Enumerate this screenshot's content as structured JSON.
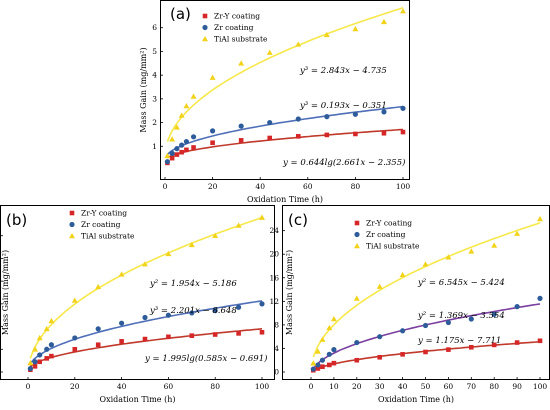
{
  "chart_data": [
    {
      "panel": "(a)",
      "type": "scatter",
      "xlabel": "Oxidation Time (h)",
      "ylabel": "Mass Gain (mg/mm²)",
      "xlim": [
        0,
        100
      ],
      "ylim": [
        0,
        7
      ],
      "xticks": [
        "0",
        "20",
        "40",
        "60",
        "80",
        "100"
      ],
      "yticks": [
        "1",
        "2",
        "3",
        "4",
        "5",
        "6"
      ],
      "legend_position": "top-left",
      "series": [
        {
          "name": "Zr-Y coating",
          "color": "#d62728",
          "marker": "square",
          "fit_color": "#c0392b",
          "x": [
            1,
            3,
            5,
            7,
            9,
            12,
            20,
            32,
            44,
            56,
            68,
            80,
            92,
            100
          ],
          "y": [
            0.3,
            0.5,
            0.65,
            0.75,
            0.85,
            0.95,
            1.15,
            1.25,
            1.35,
            1.42,
            1.48,
            1.52,
            1.55,
            1.6
          ]
        },
        {
          "name": "Zr coating",
          "color": "#2e5c9a",
          "marker": "circle",
          "fit_color": "#4f6fb8",
          "x": [
            1,
            3,
            5,
            7,
            9,
            12,
            20,
            32,
            44,
            56,
            68,
            80,
            92,
            100
          ],
          "y": [
            0.35,
            0.7,
            0.9,
            1.05,
            1.2,
            1.4,
            1.65,
            1.85,
            2.0,
            2.15,
            2.25,
            2.35,
            2.45,
            2.6
          ]
        },
        {
          "name": "TiAl substrate",
          "color": "#f2d31b",
          "marker": "triangle",
          "fit_color": "#f7e84a",
          "x": [
            1,
            3,
            5,
            7,
            9,
            12,
            20,
            32,
            44,
            56,
            68,
            80,
            92,
            100
          ],
          "y": [
            0.6,
            1.3,
            1.8,
            2.3,
            2.7,
            3.1,
            3.9,
            4.5,
            4.95,
            5.3,
            5.7,
            5.95,
            6.25,
            6.7
          ]
        }
      ],
      "annotations": [
        "y³ = 2.843x − 4.735",
        "y³ = 0.193x − 0.351",
        "y = 0.644lg(2.661x − 2.355)"
      ]
    },
    {
      "panel": "(b)",
      "type": "scatter",
      "xlabel": "Oxidation Time (h)",
      "ylabel": "Mass Gain (mg/mm²)",
      "xlim": [
        0,
        100
      ],
      "ylim": [
        0,
        14
      ],
      "xticks": [
        "0",
        "20",
        "40",
        "60",
        "80",
        "100"
      ],
      "yticks": [
        "0",
        "2",
        "4",
        "6",
        "8",
        "10",
        "12"
      ],
      "legend_position": "top-left",
      "series": [
        {
          "name": "Zr-Y coating",
          "color": "#d62728",
          "marker": "square",
          "fit_color": "#c0392b",
          "x": [
            1,
            3,
            5,
            8,
            10,
            20,
            30,
            40,
            50,
            60,
            70,
            80,
            90,
            100
          ],
          "y": [
            0.2,
            0.5,
            0.9,
            1.2,
            1.4,
            2.0,
            2.4,
            2.7,
            2.9,
            3.1,
            3.2,
            3.3,
            3.4,
            3.5
          ]
        },
        {
          "name": "Zr coating",
          "color": "#2e5c9a",
          "marker": "circle",
          "fit_color": "#4f6fb8",
          "x": [
            1,
            3,
            5,
            8,
            10,
            20,
            30,
            40,
            50,
            60,
            70,
            80,
            90,
            100
          ],
          "y": [
            0.3,
            0.9,
            1.5,
            2.0,
            2.4,
            3.0,
            3.8,
            4.3,
            4.8,
            5.0,
            5.2,
            5.4,
            5.7,
            6.0
          ]
        },
        {
          "name": "TiAl substrate",
          "color": "#f2d31b",
          "marker": "triangle",
          "fit_color": "#f7e84a",
          "x": [
            1,
            3,
            5,
            8,
            10,
            20,
            30,
            40,
            50,
            60,
            70,
            80,
            90,
            100
          ],
          "y": [
            0.8,
            2.0,
            3.0,
            3.8,
            4.5,
            6.3,
            7.5,
            8.6,
            9.5,
            10.4,
            11.2,
            12.0,
            12.9,
            13.6
          ]
        }
      ],
      "annotations": [
        "y² = 1.954x − 5.186",
        "y³ = 2.201x − 8.648",
        "y = 1.995lg(0.585x − 0.691)"
      ]
    },
    {
      "panel": "(c)",
      "type": "scatter",
      "xlabel": "Oxidation Time (h)",
      "ylabel": "Mass Gain (mg/mm²)",
      "xlim": [
        0,
        100
      ],
      "ylim": [
        0,
        27
      ],
      "xticks": [
        "0",
        "10",
        "20",
        "30",
        "40",
        "50",
        "60",
        "70",
        "80",
        "90",
        "100"
      ],
      "yticks": [
        "0",
        "4",
        "8",
        "12",
        "16",
        "20",
        "24"
      ],
      "legend_position": "top-left",
      "series": [
        {
          "name": "Zr-Y coating",
          "color": "#d62728",
          "marker": "square",
          "fit_color": "#c0392b",
          "x": [
            1,
            3,
            5,
            8,
            10,
            20,
            30,
            40,
            50,
            60,
            70,
            80,
            90,
            100
          ],
          "y": [
            0.3,
            0.6,
            0.9,
            1.2,
            1.5,
            2.0,
            2.5,
            3.0,
            3.4,
            3.8,
            4.2,
            4.6,
            5.0,
            5.3
          ]
        },
        {
          "name": "Zr coating",
          "color": "#2e5c9a",
          "marker": "circle",
          "fit_color": "#7a3fa0",
          "x": [
            1,
            3,
            5,
            8,
            10,
            20,
            30,
            40,
            50,
            60,
            70,
            80,
            90,
            100
          ],
          "y": [
            0.5,
            1.2,
            2.0,
            3.0,
            3.8,
            5.0,
            6.0,
            7.0,
            7.9,
            8.4,
            9.0,
            9.8,
            11.1,
            12.5
          ]
        },
        {
          "name": "TiAl substrate",
          "color": "#f2d31b",
          "marker": "triangle",
          "fit_color": "#f7e84a",
          "x": [
            1,
            3,
            5,
            8,
            10,
            20,
            30,
            40,
            50,
            60,
            70,
            80,
            90,
            100
          ],
          "y": [
            1.5,
            3.5,
            5.5,
            7.5,
            9.0,
            12.5,
            14.5,
            16.5,
            18.3,
            19.5,
            20.5,
            21.5,
            23.5,
            26.0
          ]
        }
      ],
      "annotations": [
        "y² = 6.545x − 5.424",
        "y² = 1.369x − 3.554",
        "y = 1.175x − 7.711"
      ]
    }
  ]
}
